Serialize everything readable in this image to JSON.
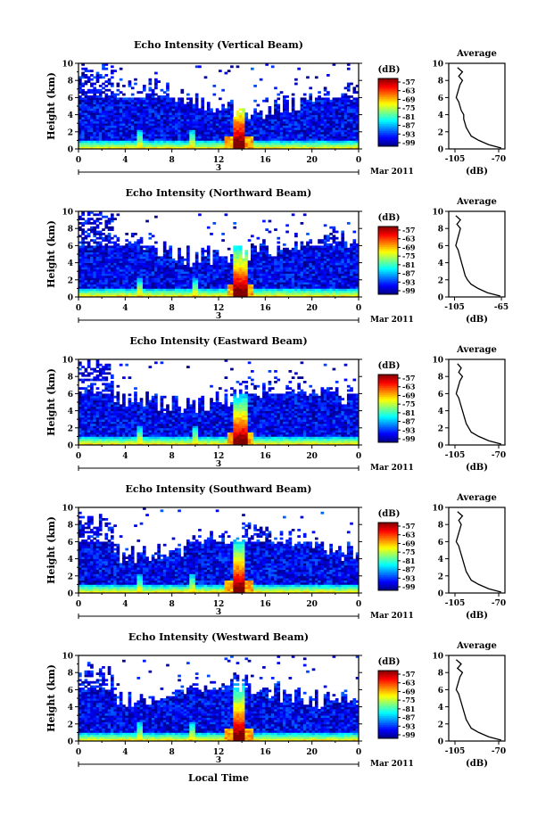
{
  "figure": {
    "date_label": "Mar 2011",
    "day_label": "3",
    "xlabel": "Local Time",
    "ylabel": "Height (km)",
    "colorbar_unit": "(dB)",
    "colorbar_ticks": [
      "-57",
      "-63",
      "-69",
      "-75",
      "-81",
      "-87",
      "-93",
      "-99"
    ],
    "profile_title": "Average",
    "profile_xlabel": "(dB)"
  },
  "chart_data": [
    {
      "type": "heatmap",
      "title": "Echo Intensity (Vertical Beam)",
      "x_ticks": [
        "0",
        "4",
        "8",
        "12",
        "16",
        "20",
        "0"
      ],
      "xlim": [
        0,
        24
      ],
      "y_ticks": [
        "0",
        "2",
        "4",
        "6",
        "8",
        "10"
      ],
      "ylim": [
        0,
        10
      ],
      "color_range_db": [
        -99,
        -54
      ],
      "features": {
        "spikes_local_time": [
          5.3,
          9.7,
          13.8
        ],
        "dominant_peak_local_time": 13.8,
        "dominant_peak_top_km": 7.0
      },
      "profile": {
        "title": "Average",
        "x_ticks": [
          "-105",
          "-70"
        ],
        "xlim": [
          -110,
          -65
        ],
        "height_km": [
          0.1,
          0.5,
          1,
          1.5,
          2,
          2.5,
          3,
          3.5,
          4,
          4.5,
          5,
          5.5,
          6,
          6.5,
          7,
          7.5,
          8,
          8.5,
          9,
          9.5
        ],
        "db": [
          -68,
          -78,
          -86,
          -92,
          -94,
          -96,
          -97,
          -98,
          -98,
          -100,
          -101,
          -102,
          -104,
          -103,
          -102,
          -101,
          -99,
          -102,
          -99,
          -103
        ]
      }
    },
    {
      "type": "heatmap",
      "title": "Echo Intensity (Northward Beam)",
      "x_ticks": [
        "0",
        "4",
        "8",
        "12",
        "16",
        "20",
        "0"
      ],
      "xlim": [
        0,
        24
      ],
      "y_ticks": [
        "0",
        "2",
        "4",
        "6",
        "8",
        "10"
      ],
      "ylim": [
        0,
        10
      ],
      "color_range_db": [
        -99,
        -54
      ],
      "features": {
        "spikes_local_time": [
          5.3,
          10.0,
          13.9
        ],
        "dominant_peak_local_time": 13.9,
        "dominant_peak_top_km": 6.5
      },
      "profile": {
        "title": "Average",
        "x_ticks": [
          "-105",
          "-65"
        ],
        "xlim": [
          -110,
          -62
        ],
        "height_km": [
          0.1,
          0.5,
          1,
          1.5,
          2,
          2.5,
          3,
          3.5,
          4,
          4.5,
          5,
          5.5,
          6,
          6.5,
          7,
          7.5,
          8,
          8.5,
          9,
          9.5
        ],
        "db": [
          -66,
          -77,
          -85,
          -91,
          -94,
          -96,
          -97,
          -98,
          -99,
          -100,
          -101,
          -102,
          -104,
          -103,
          -102,
          -101,
          -100,
          -103,
          -100,
          -104
        ]
      }
    },
    {
      "type": "heatmap",
      "title": "Echo Intensity (Eastward Beam)",
      "x_ticks": [
        "0",
        "4",
        "8",
        "12",
        "16",
        "20",
        "0"
      ],
      "xlim": [
        0,
        24
      ],
      "y_ticks": [
        "0",
        "2",
        "4",
        "6",
        "8",
        "10"
      ],
      "ylim": [
        0,
        10
      ],
      "color_range_db": [
        -99,
        -54
      ],
      "features": {
        "spikes_local_time": [
          5.3,
          10.0,
          13.9
        ],
        "dominant_peak_local_time": 13.9,
        "dominant_peak_top_km": 6.0
      },
      "profile": {
        "title": "Average",
        "x_ticks": [
          "-105",
          "-70"
        ],
        "xlim": [
          -110,
          -65
        ],
        "height_km": [
          0.1,
          0.5,
          1,
          1.5,
          2,
          2.5,
          3,
          3.5,
          4,
          4.5,
          5,
          5.5,
          6,
          6.5,
          7,
          7.5,
          8,
          8.5,
          9,
          9.5
        ],
        "db": [
          -68,
          -78,
          -86,
          -92,
          -94,
          -96,
          -97,
          -98,
          -99,
          -100,
          -101,
          -102,
          -104,
          -103,
          -102,
          -101,
          -99,
          -102,
          -100,
          -103
        ]
      }
    },
    {
      "type": "heatmap",
      "title": "Echo Intensity (Southward Beam)",
      "x_ticks": [
        "0",
        "4",
        "8",
        "12",
        "16",
        "20",
        "0"
      ],
      "xlim": [
        0,
        24
      ],
      "y_ticks": [
        "0",
        "2",
        "4",
        "6",
        "8",
        "10"
      ],
      "ylim": [
        0,
        10
      ],
      "color_range_db": [
        -99,
        -54
      ],
      "features": {
        "spikes_local_time": [
          5.3,
          9.7,
          13.8
        ],
        "dominant_peak_local_time": 13.8,
        "dominant_peak_top_km": 6.5
      },
      "profile": {
        "title": "Average",
        "x_ticks": [
          "-105",
          "-70"
        ],
        "xlim": [
          -110,
          -65
        ],
        "height_km": [
          0.1,
          0.5,
          1,
          1.5,
          2,
          2.5,
          3,
          3.5,
          4,
          4.5,
          5,
          5.5,
          6,
          6.5,
          7,
          7.5,
          8,
          8.5,
          9,
          9.5
        ],
        "db": [
          -68,
          -78,
          -86,
          -92,
          -94,
          -96,
          -97,
          -98,
          -99,
          -100,
          -101,
          -102,
          -104,
          -103,
          -102,
          -101,
          -100,
          -102,
          -99,
          -103
        ]
      }
    },
    {
      "type": "heatmap",
      "title": "Echo Intensity (Westward Beam)",
      "x_ticks": [
        "0",
        "4",
        "8",
        "12",
        "16",
        "20",
        "0"
      ],
      "xlim": [
        0,
        24
      ],
      "y_ticks": [
        "0",
        "2",
        "4",
        "6",
        "8",
        "10"
      ],
      "ylim": [
        0,
        10
      ],
      "color_range_db": [
        -99,
        -54
      ],
      "features": {
        "spikes_local_time": [
          5.3,
          9.7,
          13.8
        ],
        "dominant_peak_local_time": 13.8,
        "dominant_peak_top_km": 6.8
      },
      "profile": {
        "title": "Average",
        "x_ticks": [
          "-105",
          "-70"
        ],
        "xlim": [
          -110,
          -65
        ],
        "height_km": [
          0.1,
          0.5,
          1,
          1.5,
          2,
          2.5,
          3,
          3.5,
          4,
          4.5,
          5,
          5.5,
          6,
          6.5,
          7,
          7.5,
          8,
          8.5,
          9,
          9.5
        ],
        "db": [
          -68,
          -78,
          -86,
          -92,
          -94,
          -96,
          -97,
          -98,
          -99,
          -100,
          -101,
          -102,
          -104,
          -103,
          -102,
          -101,
          -99,
          -103,
          -100,
          -104
        ]
      }
    }
  ]
}
